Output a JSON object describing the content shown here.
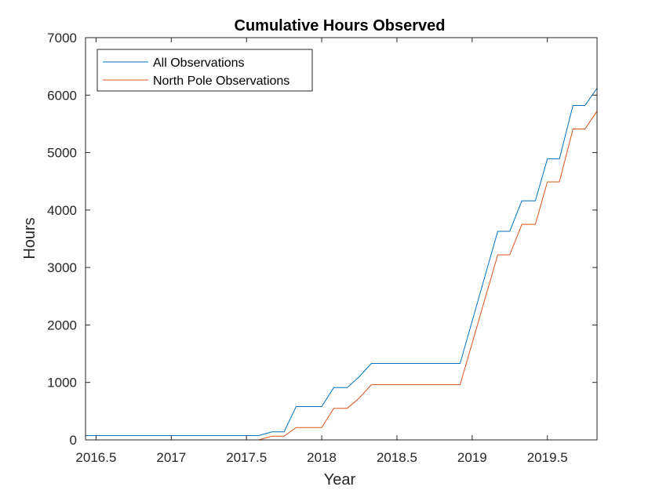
{
  "chart_data": {
    "type": "line",
    "title": "Cumulative Hours Observed",
    "xlabel": "Year",
    "ylabel": "Hours",
    "xlim": [
      2016.43,
      2019.83
    ],
    "ylim": [
      0,
      7000
    ],
    "xticks": [
      2016.5,
      2017,
      2017.5,
      2018,
      2018.5,
      2019,
      2019.5
    ],
    "xtick_labels": [
      "2016.5",
      "2017",
      "2017.5",
      "2018",
      "2018.5",
      "2019",
      "2019.5"
    ],
    "yticks": [
      0,
      1000,
      2000,
      3000,
      4000,
      5000,
      6000,
      7000
    ],
    "ytick_labels": [
      "0",
      "1000",
      "2000",
      "3000",
      "4000",
      "5000",
      "6000",
      "7000"
    ],
    "grid": false,
    "legend_position": "top-left",
    "series": [
      {
        "name": "All Observations",
        "color": "#0072BD",
        "x": [
          2016.43,
          2017.58,
          2017.67,
          2017.75,
          2017.83,
          2018.0,
          2018.08,
          2018.17,
          2018.25,
          2018.33,
          2018.92,
          2019.17,
          2019.25,
          2019.33,
          2019.42,
          2019.5,
          2019.58,
          2019.67,
          2019.75,
          2019.83
        ],
        "y": [
          75,
          75,
          140,
          140,
          580,
          580,
          910,
          910,
          1100,
          1330,
          1330,
          3630,
          3630,
          4160,
          4160,
          4890,
          4890,
          5820,
          5820,
          6120
        ]
      },
      {
        "name": "North Pole Observations",
        "color": "#D95319",
        "x": [
          2016.43,
          2017.58,
          2017.67,
          2017.75,
          2017.83,
          2018.0,
          2018.08,
          2018.17,
          2018.25,
          2018.33,
          2018.92,
          2019.17,
          2019.25,
          2019.33,
          2019.42,
          2019.5,
          2019.58,
          2019.67,
          2019.75,
          2019.83
        ],
        "y": [
          0,
          0,
          65,
          65,
          215,
          215,
          550,
          550,
          730,
          960,
          960,
          3220,
          3220,
          3750,
          3750,
          4490,
          4490,
          5410,
          5410,
          5720
        ]
      }
    ]
  }
}
